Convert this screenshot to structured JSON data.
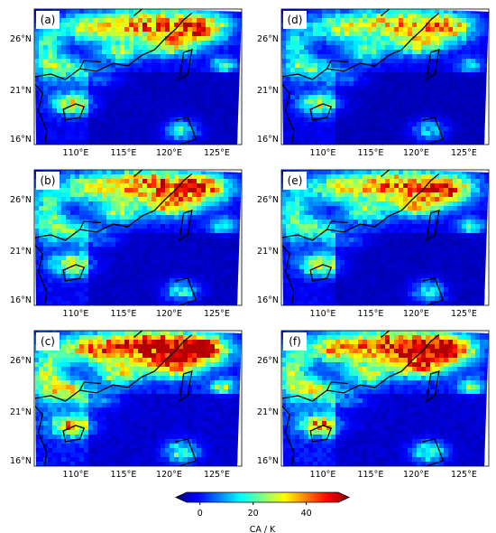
{
  "figure": {
    "panels": [
      {
        "label": "(a)",
        "intensity": 0.95,
        "seed": 11
      },
      {
        "label": "(d)",
        "intensity": 0.85,
        "seed": 17
      },
      {
        "label": "(b)",
        "intensity": 1.0,
        "seed": 23
      },
      {
        "label": "(e)",
        "intensity": 0.95,
        "seed": 29
      },
      {
        "label": "(c)",
        "intensity": 1.2,
        "seed": 31
      },
      {
        "label": "(f)",
        "intensity": 1.15,
        "seed": 37
      }
    ],
    "lat_ticks": [
      "26°N",
      "21°N",
      "16°N"
    ],
    "lon_ticks": [
      "110°E",
      "115°E",
      "120°E",
      "125°E"
    ],
    "colorbar": {
      "ticks": [
        "0",
        "20",
        "40"
      ],
      "label": "CA / K",
      "min": -5,
      "max": 52,
      "colors": [
        "#00007f",
        "#0000ff",
        "#007fff",
        "#00ffff",
        "#7fff7f",
        "#ffff00",
        "#ff7f00",
        "#ff0000",
        "#7f0000"
      ]
    }
  }
}
